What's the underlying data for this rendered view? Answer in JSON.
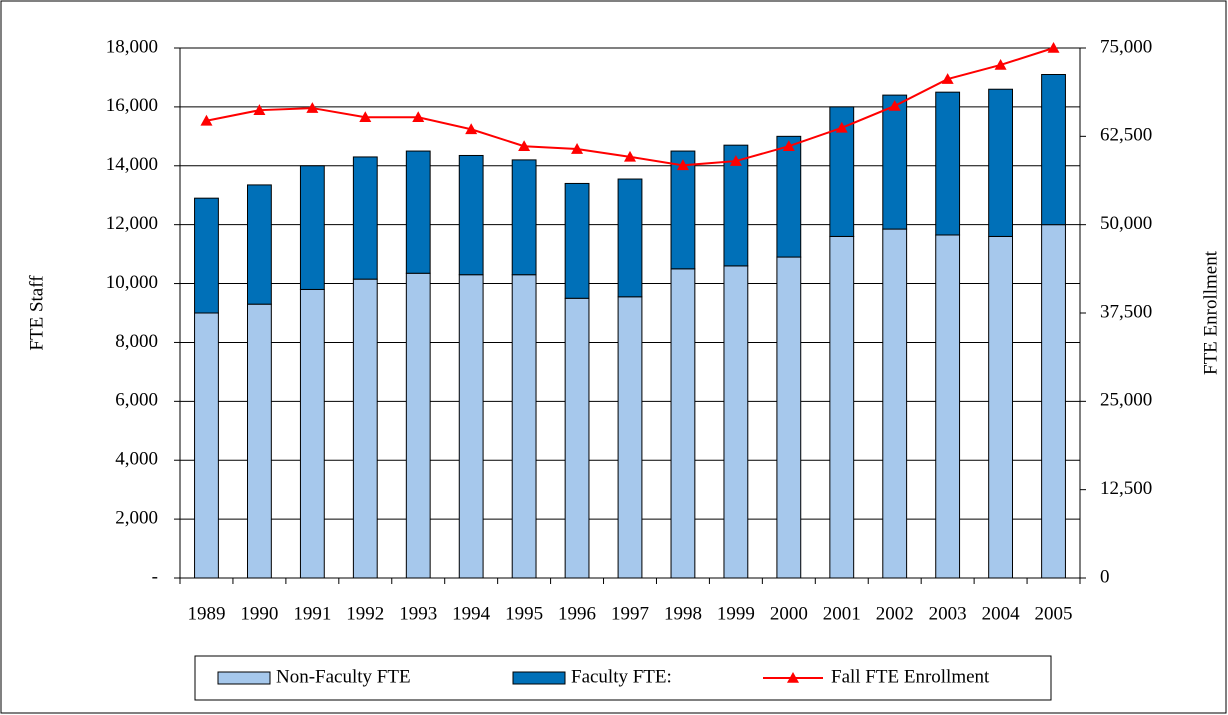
{
  "chart_data": {
    "type": "bar",
    "stacked": true,
    "y_label": "FTE Staff",
    "y2_label": "FTE Enrollment",
    "categories": [
      "1989",
      "1990",
      "1991",
      "1992",
      "1993",
      "1994",
      "1995",
      "1996",
      "1997",
      "1998",
      "1999",
      "2000",
      "2001",
      "2002",
      "2003",
      "2004",
      "2005"
    ],
    "series": [
      {
        "name": "Non-Faculty FTE",
        "color": "#a6c8ec",
        "values": [
          9000,
          9300,
          9800,
          10150,
          10350,
          10300,
          10300,
          9500,
          9550,
          10500,
          10600,
          10900,
          11600,
          11850,
          11650,
          11600,
          12000
        ]
      },
      {
        "name": "Faculty FTE:",
        "color": "#0070b8",
        "values": [
          3900,
          4050,
          4200,
          4150,
          4150,
          4050,
          3900,
          3900,
          4000,
          4000,
          4100,
          4100,
          4400,
          4550,
          4850,
          5000,
          5100
        ]
      },
      {
        "name": "Fall FTE Enrollment",
        "color": "#ff0000",
        "type": "line",
        "marker": "triangle",
        "axis": "y2",
        "values": [
          64700,
          66200,
          66500,
          65200,
          65200,
          63500,
          61100,
          60700,
          59600,
          58400,
          59000,
          61100,
          63700,
          66800,
          70600,
          72600,
          75000
        ]
      }
    ],
    "ylim": [
      0,
      18000
    ],
    "yticks": [
      {
        "value": 0,
        "label": "-"
      },
      {
        "value": 2000,
        "label": "2,000"
      },
      {
        "value": 4000,
        "label": "4,000"
      },
      {
        "value": 6000,
        "label": "6,000"
      },
      {
        "value": 8000,
        "label": "8,000"
      },
      {
        "value": 10000,
        "label": "10,000"
      },
      {
        "value": 12000,
        "label": "12,000"
      },
      {
        "value": 14000,
        "label": "14,000"
      },
      {
        "value": 16000,
        "label": "16,000"
      },
      {
        "value": 18000,
        "label": "18,000"
      }
    ],
    "y2lim": [
      0,
      75000
    ],
    "y2ticks": [
      0,
      {
        "value": 12500,
        "label": "12,500"
      },
      {
        "value": 25000,
        "label": "25,000"
      },
      {
        "value": 37500,
        "label": "37,500"
      },
      {
        "value": 50000,
        "label": "50,000"
      },
      {
        "value": 62500,
        "label": "62,500"
      },
      {
        "value": 75000,
        "label": "75,000"
      }
    ],
    "grid": true,
    "legend": "bottom"
  }
}
